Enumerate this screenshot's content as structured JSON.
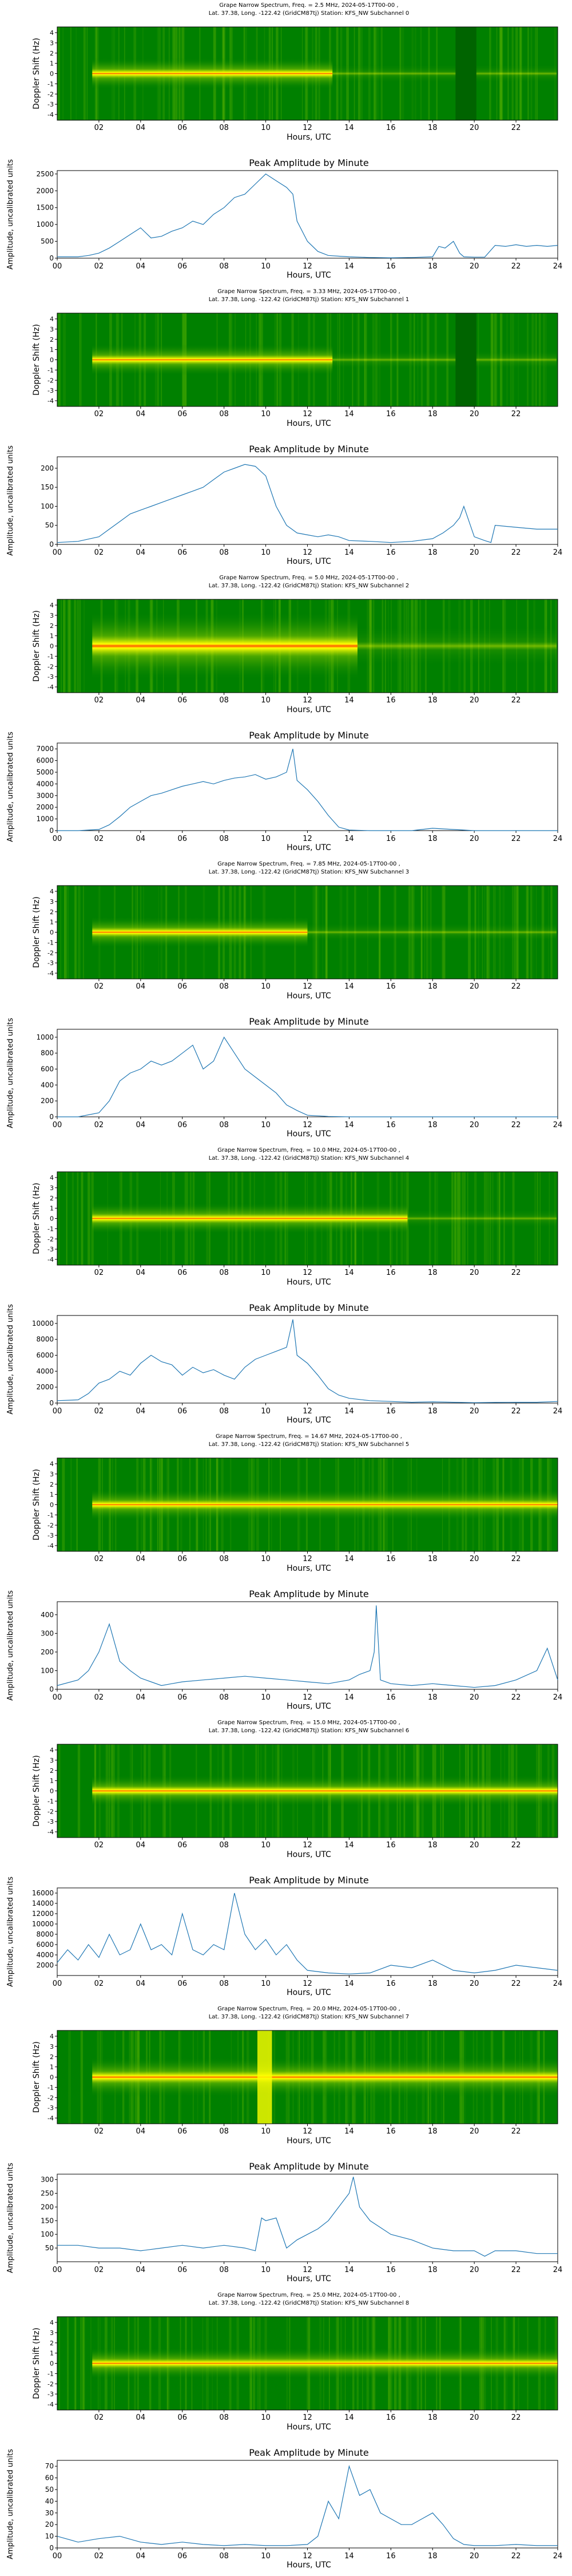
{
  "figure": {
    "spec_xlabel": "Hours, UTC",
    "spec_ylabel": "Doppler Shift (Hz)",
    "amp_title": "Peak Amplitude by Minute",
    "amp_xlabel": "Hours, UTC",
    "amp_ylabel": "Amplitude, uncalibrated units",
    "spec_xticks": [
      "02",
      "04",
      "06",
      "08",
      "10",
      "12",
      "14",
      "16",
      "18",
      "20",
      "22"
    ],
    "spec_yticks": [
      "4",
      "3",
      "2",
      "1",
      "0",
      "-1",
      "-2",
      "-3",
      "-4"
    ],
    "amp_xticks": [
      "00",
      "02",
      "04",
      "06",
      "08",
      "10",
      "12",
      "14",
      "16",
      "18",
      "20",
      "22",
      "24"
    ],
    "colors": {
      "background": "#008000",
      "signal": "#ffff00",
      "peak": "#ff4000",
      "line": "#1f77b4"
    }
  },
  "chart_data": [
    {
      "type": "heatmap",
      "title_line1": "Grape Narrow Spectrum, Freq. = 2.5 MHz, 2024-05-17T00-00 ,",
      "title_line2": "Lat.  37.38, Long. -122.42 (GridCM87tj) Station: KFS_NW Subchannel 0"
    },
    {
      "type": "line",
      "title": "Peak Amplitude by Minute",
      "ylim": [
        0,
        2600
      ],
      "yticks": [
        0,
        500,
        1000,
        1500,
        2000,
        2500
      ],
      "x": [
        0,
        1,
        1.5,
        2,
        2.5,
        3,
        3.5,
        4,
        4.5,
        5,
        5.5,
        6,
        6.5,
        7,
        7.5,
        8,
        8.5,
        9,
        9.5,
        10,
        10.5,
        11,
        11.3,
        11.5,
        12,
        12.5,
        13,
        13.5,
        14,
        15,
        16,
        17,
        18,
        18.3,
        18.6,
        19,
        19.3,
        19.5,
        20,
        20.5,
        21,
        21.5,
        22,
        22.5,
        23,
        23.5,
        24
      ],
      "y": [
        40,
        40,
        80,
        150,
        300,
        500,
        700,
        900,
        600,
        650,
        800,
        900,
        1100,
        1000,
        1300,
        1500,
        1800,
        1900,
        2200,
        2500,
        2300,
        2100,
        1900,
        1100,
        500,
        200,
        80,
        60,
        40,
        20,
        10,
        20,
        40,
        350,
        300,
        500,
        150,
        40,
        30,
        30,
        380,
        350,
        400,
        350,
        380,
        350,
        380
      ]
    },
    {
      "type": "heatmap",
      "title_line1": "Grape Narrow Spectrum, Freq. = 3.33 MHz, 2024-05-17T00-00 ,",
      "title_line2": "Lat.  37.38, Long. -122.42 (GridCM87tj) Station: KFS_NW Subchannel 1"
    },
    {
      "type": "line",
      "title": "Peak Amplitude by Minute",
      "ylim": [
        0,
        230
      ],
      "yticks": [
        0,
        50,
        100,
        150,
        200
      ],
      "x": [
        0,
        1,
        2,
        2.5,
        3,
        3.5,
        4,
        4.5,
        5,
        5.5,
        6,
        6.5,
        7,
        7.5,
        8,
        8.5,
        9,
        9.5,
        10,
        10.5,
        11,
        11.5,
        12,
        12.5,
        13,
        13.5,
        14,
        15,
        16,
        17,
        18,
        18.5,
        19,
        19.3,
        19.5,
        20,
        20.5,
        20.8,
        21,
        22,
        23,
        24
      ],
      "y": [
        5,
        8,
        20,
        40,
        60,
        80,
        90,
        100,
        110,
        120,
        130,
        140,
        150,
        170,
        190,
        200,
        210,
        205,
        180,
        100,
        50,
        30,
        25,
        20,
        25,
        20,
        10,
        8,
        5,
        8,
        15,
        30,
        50,
        70,
        100,
        20,
        10,
        5,
        50,
        45,
        40,
        40
      ]
    },
    {
      "type": "heatmap",
      "title_line1": "Grape Narrow Spectrum, Freq. = 5.0 MHz, 2024-05-17T00-00 ,",
      "title_line2": "Lat.  37.38, Long. -122.42 (GridCM87tj) Station: KFS_NW Subchannel 2"
    },
    {
      "type": "line",
      "title": "Peak Amplitude by Minute",
      "ylim": [
        0,
        7500
      ],
      "yticks": [
        0,
        1000,
        2000,
        3000,
        4000,
        5000,
        6000,
        7000
      ],
      "x": [
        0,
        1,
        2,
        2.5,
        3,
        3.5,
        4,
        4.5,
        5,
        5.5,
        6,
        6.5,
        7,
        7.5,
        8,
        8.5,
        9,
        9.5,
        10,
        10.5,
        11,
        11.3,
        11.5,
        12,
        12.5,
        13,
        13.5,
        14,
        15,
        16,
        17,
        18,
        19,
        20,
        21,
        22,
        23,
        24
      ],
      "y": [
        0,
        0,
        100,
        500,
        1200,
        2000,
        2500,
        3000,
        3200,
        3500,
        3800,
        4000,
        4200,
        4000,
        4300,
        4500,
        4600,
        4800,
        4400,
        4600,
        5000,
        7000,
        4300,
        3500,
        2500,
        1300,
        300,
        50,
        0,
        0,
        0,
        200,
        100,
        0,
        0,
        0,
        0,
        0
      ]
    },
    {
      "type": "heatmap",
      "title_line1": "Grape Narrow Spectrum, Freq. = 7.85 MHz, 2024-05-17T00-00 ,",
      "title_line2": "Lat.  37.38, Long. -122.42 (GridCM87tj) Station: KFS_NW Subchannel 3"
    },
    {
      "type": "line",
      "title": "Peak Amplitude by Minute",
      "ylim": [
        0,
        1100
      ],
      "yticks": [
        0,
        200,
        400,
        600,
        800,
        1000
      ],
      "x": [
        0,
        1,
        2,
        2.5,
        3,
        3.5,
        4,
        4.5,
        5,
        5.5,
        6,
        6.5,
        7,
        7.5,
        8,
        8.5,
        9,
        9.5,
        10,
        10.5,
        11,
        11.5,
        12,
        13,
        14,
        15,
        16,
        17,
        18,
        19,
        20,
        21,
        22,
        23,
        24
      ],
      "y": [
        0,
        0,
        50,
        200,
        450,
        550,
        600,
        700,
        650,
        700,
        800,
        900,
        600,
        700,
        1000,
        800,
        600,
        500,
        400,
        300,
        150,
        80,
        20,
        5,
        0,
        0,
        0,
        0,
        0,
        0,
        0,
        0,
        0,
        0,
        0
      ]
    },
    {
      "type": "heatmap",
      "title_line1": "Grape Narrow Spectrum, Freq. = 10.0 MHz, 2024-05-17T00-00 ,",
      "title_line2": "Lat.  37.38, Long. -122.42 (GridCM87tj) Station: KFS_NW Subchannel 4"
    },
    {
      "type": "line",
      "title": "Peak Amplitude by Minute",
      "ylim": [
        0,
        11000
      ],
      "yticks": [
        0,
        2000,
        4000,
        6000,
        8000,
        10000
      ],
      "x": [
        0,
        1,
        1.5,
        2,
        2.5,
        3,
        3.5,
        4,
        4.5,
        5,
        5.5,
        6,
        6.5,
        7,
        7.5,
        8,
        8.5,
        9,
        9.5,
        10,
        10.5,
        11,
        11.3,
        11.5,
        12,
        12.5,
        13,
        13.5,
        14,
        15,
        16,
        17,
        18,
        19,
        20,
        21,
        22,
        23,
        24
      ],
      "y": [
        300,
        400,
        1200,
        2500,
        3000,
        4000,
        3500,
        5000,
        6000,
        5200,
        4800,
        3500,
        4500,
        3800,
        4200,
        3500,
        3000,
        4500,
        5500,
        6000,
        6500,
        7000,
        10500,
        6000,
        5000,
        3500,
        1800,
        1000,
        600,
        300,
        200,
        100,
        150,
        100,
        50,
        80,
        100,
        100,
        200
      ]
    },
    {
      "type": "heatmap",
      "title_line1": "Grape Narrow Spectrum, Freq. = 14.67 MHz, 2024-05-17T00-00 ,",
      "title_line2": "Lat.  37.38, Long. -122.42 (GridCM87tj) Station: KFS_NW Subchannel 5"
    },
    {
      "type": "line",
      "title": "Peak Amplitude by Minute",
      "ylim": [
        0,
        470
      ],
      "yticks": [
        0,
        100,
        200,
        300,
        400
      ],
      "x": [
        0,
        1,
        1.5,
        2,
        2.5,
        3,
        3.5,
        4,
        4.5,
        5,
        5.5,
        6,
        7,
        8,
        9,
        10,
        11,
        12,
        13,
        14,
        14.5,
        15,
        15.2,
        15.3,
        15.5,
        16,
        17,
        18,
        19,
        20,
        21,
        22,
        23,
        23.5,
        24
      ],
      "y": [
        20,
        50,
        100,
        200,
        350,
        150,
        100,
        60,
        40,
        20,
        30,
        40,
        50,
        60,
        70,
        60,
        50,
        40,
        30,
        50,
        80,
        100,
        200,
        450,
        50,
        30,
        20,
        30,
        20,
        10,
        20,
        50,
        100,
        220,
        50
      ]
    },
    {
      "type": "heatmap",
      "title_line1": "Grape Narrow Spectrum, Freq. = 15.0 MHz, 2024-05-17T00-00 ,",
      "title_line2": "Lat.  37.38, Long. -122.42 (GridCM87tj) Station: KFS_NW Subchannel 6"
    },
    {
      "type": "line",
      "title": "Peak Amplitude by Minute",
      "ylim": [
        0,
        17000
      ],
      "yticks": [
        2000,
        4000,
        6000,
        8000,
        10000,
        12000,
        14000,
        16000
      ],
      "x": [
        0,
        0.5,
        1,
        1.5,
        2,
        2.5,
        3,
        3.5,
        4,
        4.5,
        5,
        5.5,
        6,
        6.5,
        7,
        7.5,
        8,
        8.5,
        9,
        9.5,
        10,
        10.5,
        11,
        11.5,
        12,
        13,
        14,
        15,
        16,
        17,
        18,
        19,
        20,
        21,
        22,
        23,
        24
      ],
      "y": [
        2500,
        5000,
        3000,
        6000,
        3500,
        8000,
        4000,
        5000,
        10000,
        5000,
        6000,
        4000,
        12000,
        5000,
        4000,
        6000,
        5000,
        16000,
        8000,
        5000,
        7000,
        4000,
        6000,
        3000,
        1000,
        500,
        300,
        500,
        2000,
        1500,
        3000,
        1000,
        500,
        1000,
        2000,
        1500,
        1000
      ]
    },
    {
      "type": "heatmap",
      "title_line1": "Grape Narrow Spectrum, Freq. = 20.0 MHz, 2024-05-17T00-00 ,",
      "title_line2": "Lat.  37.38, Long. -122.42 (GridCM87tj) Station: KFS_NW Subchannel 7"
    },
    {
      "type": "line",
      "title": "Peak Amplitude by Minute",
      "ylim": [
        0,
        320
      ],
      "yticks": [
        50,
        100,
        150,
        200,
        250,
        300
      ],
      "x": [
        0,
        1,
        2,
        3,
        4,
        5,
        6,
        7,
        8,
        9,
        9.5,
        9.8,
        10,
        10.5,
        11,
        11.5,
        12,
        12.5,
        13,
        13.5,
        14,
        14.2,
        14.5,
        15,
        16,
        17,
        18,
        19,
        20,
        20.5,
        21,
        22,
        23,
        24
      ],
      "y": [
        60,
        60,
        50,
        50,
        40,
        50,
        60,
        50,
        60,
        50,
        40,
        160,
        150,
        160,
        50,
        80,
        100,
        120,
        150,
        200,
        250,
        310,
        200,
        150,
        100,
        80,
        50,
        40,
        40,
        20,
        40,
        40,
        30,
        30
      ]
    },
    {
      "type": "heatmap",
      "title_line1": "Grape Narrow Spectrum, Freq. = 25.0 MHz, 2024-05-17T00-00 ,",
      "title_line2": "Lat.  37.38, Long. -122.42 (GridCM87tj) Station: KFS_NW Subchannel 8"
    },
    {
      "type": "line",
      "title": "Peak Amplitude by Minute",
      "ylim": [
        0,
        75
      ],
      "yticks": [
        0,
        10,
        20,
        30,
        40,
        50,
        60,
        70
      ],
      "x": [
        0,
        1,
        2,
        3,
        4,
        5,
        6,
        7,
        8,
        9,
        10,
        11,
        12,
        12.5,
        13,
        13.5,
        14,
        14.5,
        15,
        15.5,
        16,
        16.5,
        17,
        17.5,
        18,
        18.5,
        19,
        19.5,
        20,
        21,
        22,
        23,
        24
      ],
      "y": [
        10,
        5,
        8,
        10,
        5,
        3,
        5,
        3,
        2,
        3,
        2,
        2,
        3,
        10,
        40,
        25,
        70,
        45,
        50,
        30,
        25,
        20,
        20,
        25,
        30,
        20,
        8,
        3,
        2,
        2,
        3,
        2,
        2
      ]
    }
  ]
}
